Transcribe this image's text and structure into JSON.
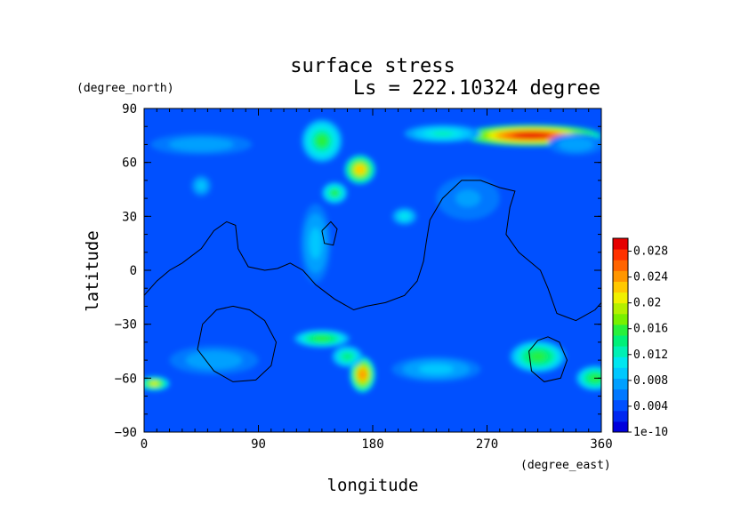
{
  "chart_data": {
    "type": "heatmap",
    "title": "surface stress",
    "subtitle": "Ls = 222.10324 degree",
    "xlabel": "longitude",
    "ylabel": "latitude",
    "xunit": "(degree_east)",
    "yunit": "(degree_north)",
    "xlim": [
      0,
      360
    ],
    "ylim": [
      -90,
      90
    ],
    "xticks": [
      "0",
      "90",
      "180",
      "270",
      "360"
    ],
    "yticks": [
      "90",
      "60",
      "30",
      "0",
      "−30",
      "−60",
      "−90"
    ],
    "colorbar": {
      "min": 0,
      "max": 0.03,
      "tick_labels": [
        "1e-10",
        "0.004",
        "0.008",
        "0.012",
        "0.016",
        "0.02",
        "0.024",
        "0.028"
      ],
      "tick_values": [
        0,
        0.004,
        0.008,
        0.012,
        0.016,
        0.02,
        0.024,
        0.028
      ],
      "colors": [
        "#0000dc",
        "#0028f0",
        "#0050ff",
        "#0078ff",
        "#00a0ff",
        "#00c8ff",
        "#00e6f0",
        "#00f0b4",
        "#00f078",
        "#28f03c",
        "#78f000",
        "#b4f000",
        "#f0f000",
        "#ffc800",
        "#ff9600",
        "#ff6400",
        "#ff3200",
        "#e60000"
      ]
    },
    "background_value": 0.004,
    "features": [
      {
        "name": "arctic-band",
        "lon": 305,
        "lat": 75,
        "lon_radius": 55,
        "lat_radius": 6,
        "peak": 0.029
      },
      {
        "name": "arctic-band-west",
        "lon": 235,
        "lat": 76,
        "lon_radius": 30,
        "lat_radius": 5,
        "peak": 0.012
      },
      {
        "name": "north-max",
        "lon": 170,
        "lat": 56,
        "lon_radius": 12,
        "lat_radius": 8,
        "peak": 0.022
      },
      {
        "name": "north-ridge",
        "lon": 150,
        "lat": 43,
        "lon_radius": 10,
        "lat_radius": 6,
        "peak": 0.015
      },
      {
        "name": "north-tongue",
        "lon": 140,
        "lat": 72,
        "lon_radius": 16,
        "lat_radius": 12,
        "peak": 0.015
      },
      {
        "name": "high-lat-west",
        "lon": 45,
        "lat": 70,
        "lon_radius": 40,
        "lat_radius": 6,
        "peak": 0.008
      },
      {
        "name": "high-lat-east",
        "lon": 340,
        "lat": 70,
        "lon_radius": 22,
        "lat_radius": 6,
        "peak": 0.008
      },
      {
        "name": "north-west-blob",
        "lon": 45,
        "lat": 47,
        "lon_radius": 8,
        "lat_radius": 6,
        "peak": 0.009
      },
      {
        "name": "mid-north-spot",
        "lon": 205,
        "lat": 30,
        "lon_radius": 10,
        "lat_radius": 5,
        "peak": 0.011
      },
      {
        "name": "central-ridge",
        "lon": 135,
        "lat": 15,
        "lon_radius": 12,
        "lat_radius": 22,
        "peak": 0.009
      },
      {
        "name": "east-north-blob",
        "lon": 255,
        "lat": 40,
        "lon_radius": 25,
        "lat_radius": 12,
        "peak": 0.007
      },
      {
        "name": "south-band",
        "lon": 140,
        "lat": -38,
        "lon_radius": 22,
        "lat_radius": 5,
        "peak": 0.016
      },
      {
        "name": "south-max",
        "lon": 172,
        "lat": -58,
        "lon_radius": 10,
        "lat_radius": 10,
        "peak": 0.024
      },
      {
        "name": "south-stripe",
        "lon": 160,
        "lat": -48,
        "lon_radius": 12,
        "lat_radius": 6,
        "peak": 0.014
      },
      {
        "name": "south-east-max",
        "lon": 310,
        "lat": -48,
        "lon_radius": 22,
        "lat_radius": 9,
        "peak": 0.016
      },
      {
        "name": "south-east-edge",
        "lon": 355,
        "lat": -60,
        "lon_radius": 15,
        "lat_radius": 7,
        "peak": 0.016
      },
      {
        "name": "south-west-edge",
        "lon": 8,
        "lat": -63,
        "lon_radius": 12,
        "lat_radius": 4,
        "peak": 0.02
      },
      {
        "name": "south-west-band",
        "lon": 55,
        "lat": -50,
        "lon_radius": 35,
        "lat_radius": 8,
        "peak": 0.008
      },
      {
        "name": "south-mid-band",
        "lon": 230,
        "lat": -55,
        "lon_radius": 35,
        "lat_radius": 7,
        "peak": 0.009
      }
    ],
    "contours": [
      [
        [
          0,
          -14
        ],
        [
          10,
          -6
        ],
        [
          20,
          0
        ],
        [
          30,
          4
        ],
        [
          45,
          12
        ],
        [
          55,
          22
        ],
        [
          65,
          27
        ],
        [
          72,
          25
        ],
        [
          74,
          12
        ],
        [
          82,
          2
        ],
        [
          95,
          0
        ],
        [
          105,
          1
        ],
        [
          115,
          4
        ],
        [
          125,
          0
        ],
        [
          135,
          -8
        ],
        [
          150,
          -16
        ],
        [
          165,
          -22
        ],
        [
          175,
          -20
        ],
        [
          190,
          -18
        ],
        [
          205,
          -14
        ],
        [
          215,
          -6
        ],
        [
          220,
          5
        ],
        [
          222,
          15
        ],
        [
          225,
          28
        ],
        [
          235,
          40
        ],
        [
          250,
          50
        ],
        [
          265,
          50
        ],
        [
          280,
          46
        ],
        [
          292,
          44
        ],
        [
          288,
          35
        ],
        [
          285,
          20
        ],
        [
          295,
          10
        ],
        [
          312,
          0
        ],
        [
          318,
          -10
        ],
        [
          325,
          -24
        ],
        [
          340,
          -28
        ],
        [
          355,
          -22
        ],
        [
          360,
          -18
        ]
      ],
      [
        [
          140,
          22
        ],
        [
          147,
          27
        ],
        [
          152,
          23
        ],
        [
          149,
          14
        ],
        [
          142,
          15
        ],
        [
          140,
          22
        ]
      ],
      [
        [
          70,
          -20
        ],
        [
          83,
          -22
        ],
        [
          95,
          -28
        ],
        [
          104,
          -40
        ],
        [
          100,
          -53
        ],
        [
          88,
          -61
        ],
        [
          70,
          -62
        ],
        [
          55,
          -56
        ],
        [
          42,
          -44
        ],
        [
          46,
          -30
        ],
        [
          57,
          -22
        ],
        [
          70,
          -20
        ]
      ],
      [
        [
          318,
          -37
        ],
        [
          327,
          -40
        ],
        [
          333,
          -50
        ],
        [
          328,
          -60
        ],
        [
          315,
          -62
        ],
        [
          305,
          -56
        ],
        [
          303,
          -45
        ],
        [
          310,
          -39
        ],
        [
          318,
          -37
        ]
      ]
    ]
  }
}
